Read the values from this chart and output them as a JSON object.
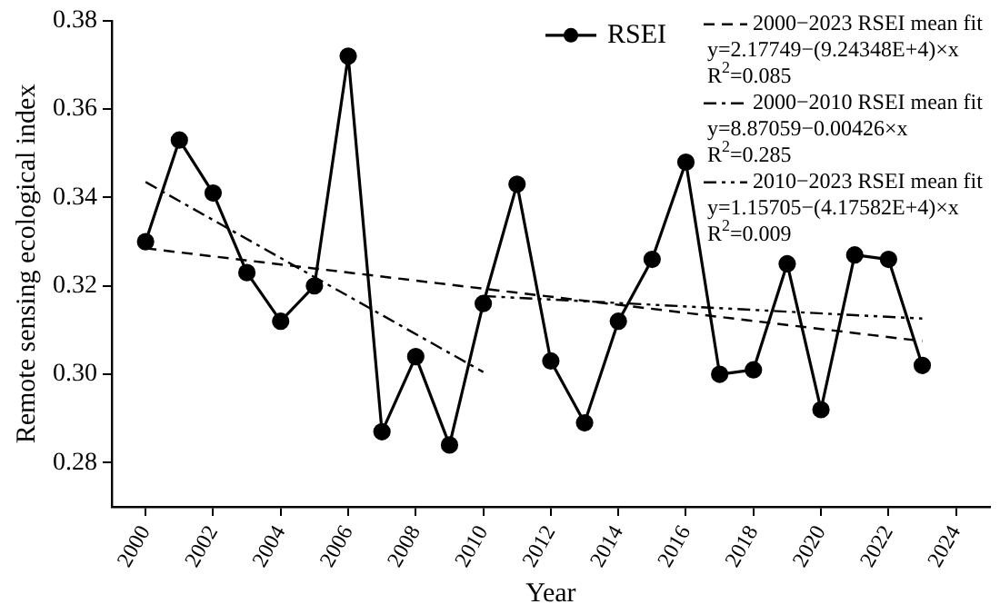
{
  "chart_data": {
    "type": "line",
    "xlabel": "Year",
    "ylabel": "Remote sensing ecological index",
    "x": [
      2000,
      2001,
      2002,
      2003,
      2004,
      2005,
      2006,
      2007,
      2008,
      2009,
      2010,
      2011,
      2012,
      2013,
      2014,
      2015,
      2016,
      2017,
      2018,
      2019,
      2020,
      2021,
      2022,
      2023
    ],
    "series": [
      {
        "name": "RSEI",
        "color": "#000000",
        "marker": "circle",
        "line_style": "solid",
        "values": [
          0.33,
          0.353,
          0.341,
          0.323,
          0.312,
          0.32,
          0.372,
          0.287,
          0.304,
          0.284,
          0.316,
          0.343,
          0.303,
          0.289,
          0.312,
          0.326,
          0.348,
          0.3,
          0.301,
          0.325,
          0.292,
          0.327,
          0.326,
          0.302
        ]
      },
      {
        "name": "2000−2023 RSEI mean fit",
        "color": "#000000",
        "marker": "none",
        "line_style": "dashed",
        "x": [
          2000,
          2023
        ],
        "values": [
          0.3285,
          0.3075
        ]
      },
      {
        "name": "2000−2010 RSEI mean fit",
        "color": "#000000",
        "marker": "none",
        "line_style": "dashdot",
        "x": [
          2000,
          2010
        ],
        "values": [
          0.3435,
          0.3005
        ]
      },
      {
        "name": "2010−2023 RSEI mean fit",
        "color": "#000000",
        "marker": "none",
        "line_style": "dashdotdot",
        "x": [
          2010,
          2023
        ],
        "values": [
          0.3177,
          0.3126
        ]
      }
    ],
    "annotations": [
      "y=2.17749−(9.24348E+4)×x",
      "R$^{2}$=0.085",
      "y=8.87059−0.00426×x",
      "R$^{2}$=0.285",
      "y=1.15705−(4.17582E+4)×x",
      "R$^{2}$=0.009"
    ],
    "xlim": [
      1999,
      2025
    ],
    "xticks": [
      2000,
      2002,
      2004,
      2006,
      2008,
      2010,
      2012,
      2014,
      2016,
      2018,
      2020,
      2022,
      2024
    ],
    "ylim": [
      0.27,
      0.38
    ],
    "yticks": [
      0.28,
      {
        "value": 0.3,
        "label": "0.30"
      },
      0.32,
      0.34,
      0.36,
      0.38
    ],
    "grid": false,
    "legend": "top right"
  }
}
